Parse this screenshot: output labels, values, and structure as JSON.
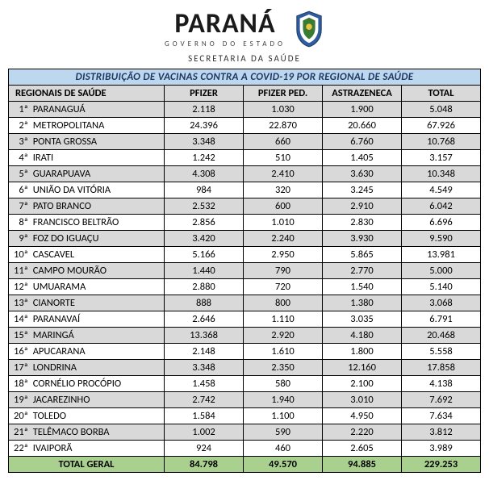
{
  "header": {
    "brand": "PARANÁ",
    "subline": "GOVERNO DO ESTADO",
    "secretariat": "SECRETARIA DA SAÚDE"
  },
  "table": {
    "title": "DISTRIBUIÇÃO DE VACINAS CONTRA A COVID-19 POR REGIONAL DE SAÚDE",
    "columns": [
      "REGIONAIS DE SAÚDE",
      "PFIZER",
      "PFIZER PED.",
      "ASTRAZENECA",
      "TOTAL"
    ],
    "rows": [
      {
        "idx": "1ª",
        "name": "PARANAGUÁ",
        "pfizer": "2.118",
        "pfizer_ped": "1.030",
        "az": "1.900",
        "total": "5.048"
      },
      {
        "idx": "2ª",
        "name": "METROPOLITANA",
        "pfizer": "24.396",
        "pfizer_ped": "22.870",
        "az": "20.660",
        "total": "67.926"
      },
      {
        "idx": "3ª",
        "name": "PONTA GROSSA",
        "pfizer": "3.348",
        "pfizer_ped": "660",
        "az": "6.760",
        "total": "10.768"
      },
      {
        "idx": "4ª",
        "name": "IRATI",
        "pfizer": "1.242",
        "pfizer_ped": "510",
        "az": "1.405",
        "total": "3.157"
      },
      {
        "idx": "5ª",
        "name": "GUARAPUAVA",
        "pfizer": "4.308",
        "pfizer_ped": "2.410",
        "az": "3.630",
        "total": "10.348"
      },
      {
        "idx": "6ª",
        "name": "UNIÃO DA VITÓRIA",
        "pfizer": "984",
        "pfizer_ped": "320",
        "az": "3.245",
        "total": "4.549"
      },
      {
        "idx": "7ª",
        "name": "PATO BRANCO",
        "pfizer": "2.532",
        "pfizer_ped": "600",
        "az": "2.910",
        "total": "6.042"
      },
      {
        "idx": "8ª",
        "name": "FRANCISCO BELTRÃO",
        "pfizer": "2.856",
        "pfizer_ped": "1.010",
        "az": "2.830",
        "total": "6.696"
      },
      {
        "idx": "9ª",
        "name": "FOZ DO IGUAÇU",
        "pfizer": "3.420",
        "pfizer_ped": "2.240",
        "az": "3.930",
        "total": "9.590"
      },
      {
        "idx": "10ª",
        "name": "CASCAVEL",
        "pfizer": "5.166",
        "pfizer_ped": "2.950",
        "az": "5.865",
        "total": "13.981"
      },
      {
        "idx": "11ª",
        "name": "CAMPO MOURÃO",
        "pfizer": "1.440",
        "pfizer_ped": "790",
        "az": "2.770",
        "total": "5.000"
      },
      {
        "idx": "12ª",
        "name": "UMUARAMA",
        "pfizer": "2.880",
        "pfizer_ped": "720",
        "az": "1.540",
        "total": "5.140"
      },
      {
        "idx": "13ª",
        "name": "CIANORTE",
        "pfizer": "888",
        "pfizer_ped": "800",
        "az": "1.380",
        "total": "3.068"
      },
      {
        "idx": "14ª",
        "name": "PARANAVAÍ",
        "pfizer": "2.646",
        "pfizer_ped": "1.110",
        "az": "3.035",
        "total": "6.791"
      },
      {
        "idx": "15ª",
        "name": "MARINGÁ",
        "pfizer": "13.368",
        "pfizer_ped": "2.920",
        "az": "4.180",
        "total": "20.468"
      },
      {
        "idx": "16ª",
        "name": "APUCARANA",
        "pfizer": "2.148",
        "pfizer_ped": "1.610",
        "az": "1.800",
        "total": "5.558"
      },
      {
        "idx": "17ª",
        "name": "LONDRINA",
        "pfizer": "3.348",
        "pfizer_ped": "2.350",
        "az": "12.160",
        "total": "17.858"
      },
      {
        "idx": "18ª",
        "name": "CORNÉLIO PROCÓPIO",
        "pfizer": "1.458",
        "pfizer_ped": "580",
        "az": "2.100",
        "total": "4.138"
      },
      {
        "idx": "19ª",
        "name": "JACAREZINHO",
        "pfizer": "2.742",
        "pfizer_ped": "1.940",
        "az": "3.010",
        "total": "7.692"
      },
      {
        "idx": "20ª",
        "name": "TOLEDO",
        "pfizer": "1.584",
        "pfizer_ped": "1.100",
        "az": "4.950",
        "total": "7.634"
      },
      {
        "idx": "21ª",
        "name": "TELÊMACO BORBA",
        "pfizer": "1.002",
        "pfizer_ped": "590",
        "az": "2.220",
        "total": "3.812"
      },
      {
        "idx": "22ª",
        "name": "IVAIPORÃ",
        "pfizer": "924",
        "pfizer_ped": "460",
        "az": "2.605",
        "total": "3.989"
      }
    ],
    "totals": {
      "label": "TOTAL GERAL",
      "pfizer": "84.798",
      "pfizer_ped": "49.570",
      "az": "94.885",
      "total": "229.253"
    }
  },
  "colors": {
    "title_bg": "#bdd7ee",
    "title_text": "#203864",
    "header_bg": "#d9d9d9",
    "row_odd_bg": "#d9d9d9",
    "row_even_bg": "#ffffff",
    "total_bg": "#a9d08e",
    "border": "#000000"
  }
}
